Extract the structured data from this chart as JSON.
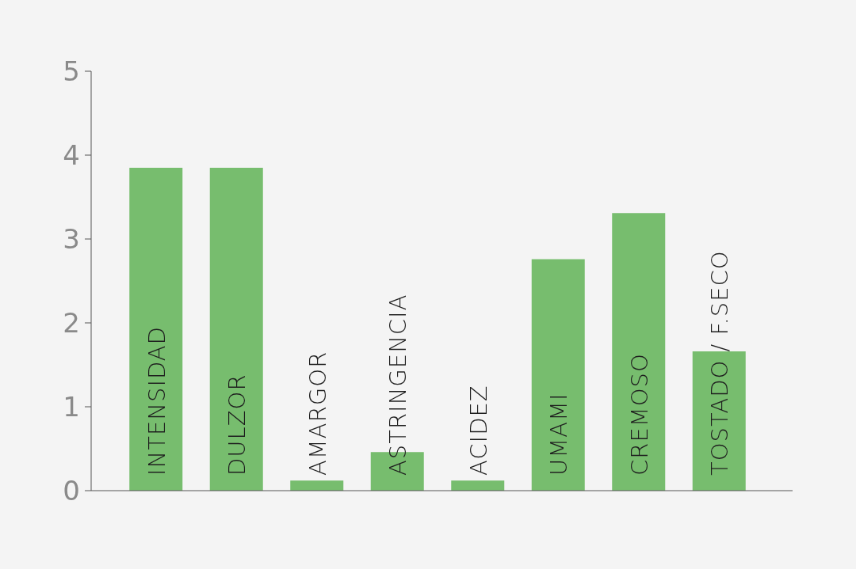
{
  "chart_data": {
    "type": "bar",
    "categories": [
      "INTENSIDAD",
      "DULZOR",
      "AMARGOR",
      "ASTRINGENCIA",
      "ACIDEZ",
      "UMAMI",
      "CREMOSO",
      "TOSTADO / F.SECO"
    ],
    "values": [
      3.85,
      3.85,
      0.12,
      0.46,
      0.12,
      2.76,
      3.31,
      1.66
    ],
    "color": "#77bd6e",
    "ylim": [
      0,
      5
    ],
    "yticks": [
      0,
      1,
      2,
      3,
      4,
      5
    ],
    "grid": false
  }
}
